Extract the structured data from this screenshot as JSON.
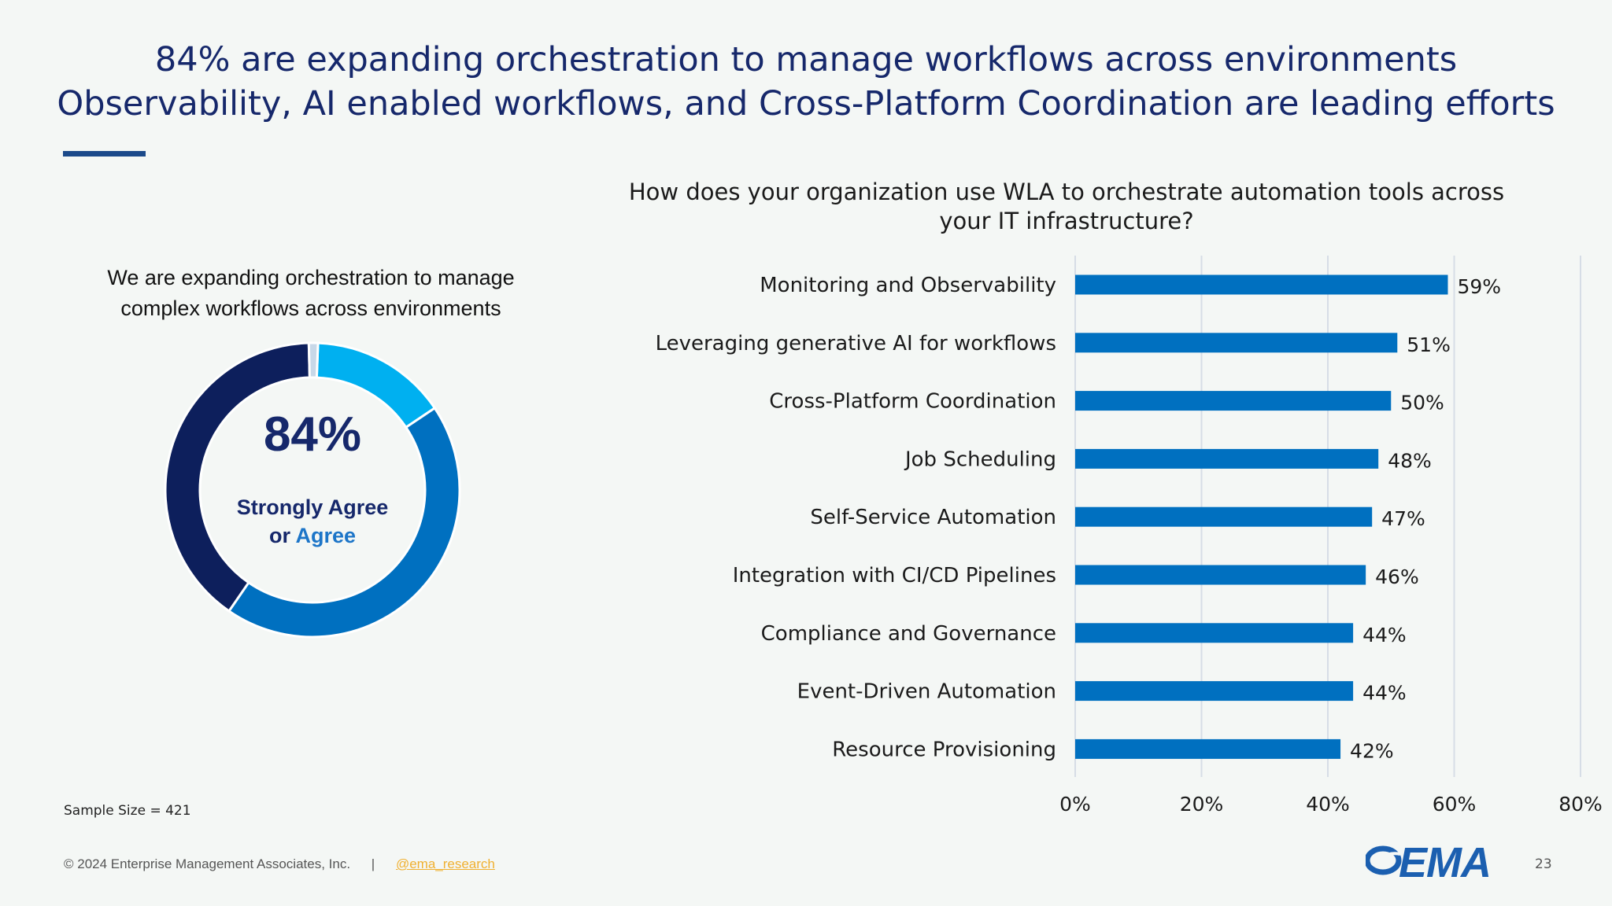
{
  "slide": {
    "title_line1": "84% are expanding orchestration to manage workflows across environments",
    "title_line2": "Observability, AI enabled workflows, and Cross-Platform Coordination are leading efforts",
    "sample_size": "Sample Size = 421",
    "copyright": "© 2024 Enterprise Management Associates, Inc.",
    "separator": "|",
    "handle": "@ema_research",
    "logo_text": "EMA",
    "page_number": "23"
  },
  "colors": {
    "title": "#16286b",
    "donut_dark": "#0d1f5c",
    "donut_mid": "#0070c0",
    "donut_light": "#00b0f0",
    "donut_pale": "#c8d8e8",
    "bar": "#0070c0",
    "grid": "#d6dde6"
  },
  "chart_data": [
    {
      "type": "pie",
      "title_line1": "We are expanding orchestration to manage",
      "title_line2": "complex workflows across environments",
      "center_value": "84%",
      "center_label_line1": "Strongly Agree",
      "center_label_prefix": "or",
      "center_label_accent": "Agree",
      "slices": [
        {
          "value": 15
        },
        {
          "value": 44
        },
        {
          "value": 40
        },
        {
          "value": 1
        }
      ]
    },
    {
      "type": "bar",
      "orientation": "horizontal",
      "title_line1": "How does your organization use WLA to orchestrate automation tools across",
      "title_line2": "your IT infrastructure?",
      "categories": [
        "Monitoring and Observability",
        "Leveraging generative AI for workflows",
        "Cross-Platform Coordination",
        "Job Scheduling",
        "Self-Service Automation",
        "Integration with CI/CD Pipelines",
        "Compliance and Governance",
        "Event-Driven Automation",
        "Resource Provisioning"
      ],
      "values": [
        59,
        51,
        50,
        48,
        47,
        46,
        44,
        44,
        42
      ],
      "value_labels": [
        "59%",
        "51%",
        "50%",
        "48%",
        "47%",
        "46%",
        "44%",
        "44%",
        "42%"
      ],
      "xlim": [
        0,
        80
      ],
      "xticks": [
        0,
        20,
        40,
        60,
        80
      ],
      "xtick_labels": [
        "0%",
        "20%",
        "40%",
        "60%",
        "80%"
      ],
      "grid": true
    }
  ]
}
